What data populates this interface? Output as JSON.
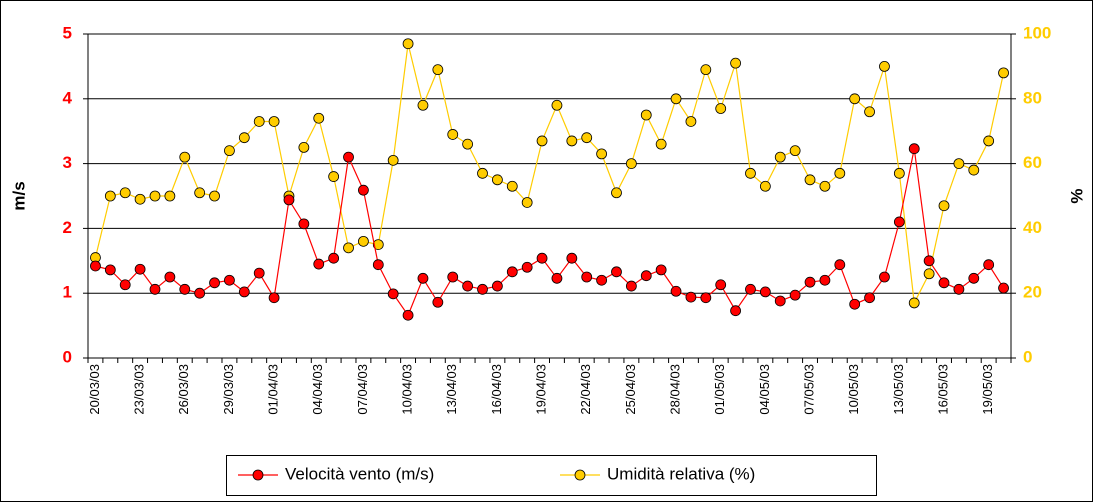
{
  "chart_data": {
    "type": "line",
    "categories": [
      "20/03/03",
      null,
      null,
      "23/03/03",
      null,
      null,
      "26/03/03",
      null,
      null,
      "29/03/03",
      null,
      null,
      "01/04/03",
      null,
      null,
      "04/04/03",
      null,
      null,
      "07/04/03",
      null,
      null,
      "10/04/03",
      null,
      null,
      "13/04/03",
      null,
      null,
      "16/04/03",
      null,
      null,
      "19/04/03",
      null,
      null,
      "22/04/03",
      null,
      null,
      "25/04/03",
      null,
      null,
      "28/04/03",
      null,
      null,
      "01/05/03",
      null,
      null,
      "04/05/03",
      null,
      null,
      "07/05/03",
      null,
      null,
      "10/05/03",
      null,
      null,
      "13/05/03",
      null,
      null,
      "16/05/03",
      null,
      null,
      "19/05/03",
      null
    ],
    "series": [
      {
        "name": "Velocità vento (m/s)",
        "color": "#ff0000",
        "values": [
          1.42,
          1.36,
          1.13,
          1.37,
          1.06,
          1.25,
          1.06,
          1.0,
          1.16,
          1.2,
          1.02,
          1.31,
          0.93,
          2.44,
          2.07,
          1.45,
          1.54,
          3.1,
          2.59,
          1.44,
          0.99,
          0.66,
          1.23,
          0.86,
          1.25,
          1.11,
          1.06,
          1.11,
          1.33,
          1.4,
          1.54,
          1.23,
          1.54,
          1.25,
          1.2,
          1.33,
          1.11,
          1.27,
          1.36,
          1.03,
          0.94,
          0.93,
          1.13,
          0.73,
          1.06,
          1.02,
          0.88,
          0.97,
          1.17,
          1.2,
          1.44,
          0.83,
          0.93,
          1.25,
          2.1,
          3.23,
          1.5,
          1.16,
          1.06,
          1.23,
          1.44,
          1.08
        ]
      },
      {
        "name": "Umidità relativa (%)",
        "color": "#ffcc00",
        "axis": "y2",
        "values": [
          31,
          50,
          51,
          49,
          50,
          50,
          62,
          51,
          50,
          64,
          68,
          73,
          73,
          50,
          65,
          74,
          56,
          34,
          36,
          35,
          61,
          97,
          78,
          89,
          69,
          66,
          57,
          55,
          53,
          48,
          67,
          78,
          67,
          68,
          63,
          51,
          60,
          75,
          66,
          80,
          73,
          89,
          77,
          91,
          57,
          53,
          62,
          64,
          55,
          53,
          57,
          80,
          76,
          90,
          57,
          17,
          26,
          47,
          60,
          58,
          67,
          88
        ]
      }
    ],
    "ylabel": "m/s",
    "y2label": "%",
    "ylim": [
      0,
      5
    ],
    "yticks": [
      0,
      1,
      2,
      3,
      4,
      5
    ],
    "y2lim": [
      0,
      100
    ],
    "y2ticks": [
      0,
      20,
      40,
      60,
      80,
      100
    ],
    "grid": true,
    "legend": "bottom"
  }
}
